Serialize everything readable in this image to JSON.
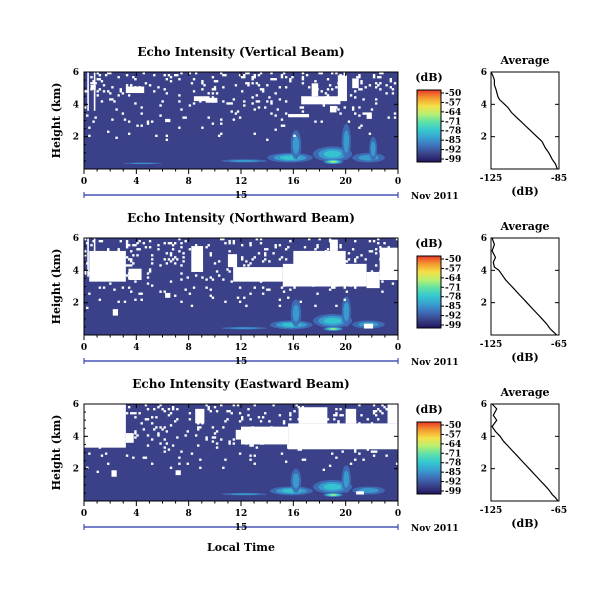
{
  "colors": {
    "background": "#3a4188",
    "colorbar": [
      "#20155f",
      "#3a4188",
      "#3e6fb8",
      "#39a0d0",
      "#35c8d0",
      "#5fe0a8",
      "#b8f070",
      "#f5e048",
      "#f59a30",
      "#e83828"
    ],
    "no_data": "#ffffff",
    "axis": "#000000",
    "date_axis": "#2233aa"
  },
  "chart_data": [
    {
      "type": "heatmap",
      "title": "Echo Intensity (Vertical Beam)",
      "ylabel": "Height (km)",
      "xticks": [
        "0",
        "4",
        "8",
        "12",
        "16",
        "20",
        "0"
      ],
      "xlim": [
        0,
        24
      ],
      "yticks": [
        "2",
        "4",
        "6"
      ],
      "ylim": [
        0,
        6
      ],
      "date_day": "15",
      "date_label": "Nov 2011",
      "colorbar": {
        "label": "(dB)",
        "ticks": [
          "-50",
          "-57",
          "-64",
          "-71",
          "-78",
          "-85",
          "-92",
          "-99"
        ],
        "range": [
          -99,
          -50
        ]
      },
      "gaps": [
        [
          3.2,
          4.6,
          4.7,
          5.1
        ],
        [
          8.4,
          9.6,
          4.2,
          4.5
        ],
        [
          9.3,
          10.2,
          4.1,
          4.4
        ],
        [
          15.6,
          17.2,
          3.2,
          3.4
        ],
        [
          16.6,
          19.6,
          4.0,
          4.5
        ],
        [
          17.4,
          17.9,
          4.5,
          5.3
        ],
        [
          19.4,
          20.1,
          4.2,
          5.8
        ],
        [
          18.8,
          19.3,
          3.5,
          3.9
        ],
        [
          20.5,
          21.0,
          5.0,
          5.6
        ],
        [
          6.2,
          6.6,
          2.9,
          3.1
        ],
        [
          0.5,
          0.9,
          4.9,
          5.2
        ],
        [
          21.6,
          22.0,
          3.1,
          3.5
        ]
      ],
      "hot": [
        [
          17.5,
          20.5,
          0.45,
          1.4,
          0.55
        ],
        [
          14.0,
          17.5,
          0.4,
          1.0,
          0.45
        ],
        [
          20.5,
          23.0,
          0.4,
          1.0,
          0.4
        ],
        [
          18.3,
          19.8,
          0.3,
          0.6,
          0.85
        ],
        [
          10.5,
          14.0,
          0.4,
          0.6,
          0.35
        ],
        [
          15.8,
          16.6,
          0.6,
          2.4,
          0.4
        ],
        [
          19.7,
          20.4,
          0.6,
          2.8,
          0.35
        ],
        [
          21.8,
          22.4,
          0.5,
          2.0,
          0.3
        ],
        [
          3.0,
          6.0,
          0.4,
          0.3,
          0.25
        ]
      ],
      "profile": {
        "title": "Average",
        "xlabel": "(dB)",
        "xticks": [
          "-125",
          "-85"
        ],
        "xlim": [
          -125,
          -85
        ],
        "yticks": [
          "2",
          "4",
          "6"
        ],
        "ylim": [
          0,
          6
        ],
        "x": [
          -125,
          -124,
          -123,
          -123,
          -122,
          -121,
          -120,
          -117,
          -115,
          -113,
          -110,
          -107,
          -104,
          -101,
          -98,
          -95,
          -93,
          -91,
          -89,
          -87,
          -86
        ],
        "y": [
          6.0,
          5.8,
          5.5,
          5.2,
          4.9,
          4.5,
          4.3,
          4.0,
          3.8,
          3.5,
          3.2,
          2.9,
          2.6,
          2.3,
          2.0,
          1.7,
          1.3,
          1.0,
          0.6,
          0.3,
          0.0
        ]
      }
    },
    {
      "type": "heatmap",
      "title": "Echo Intensity (Northward Beam)",
      "ylabel": "Height (km)",
      "xticks": [
        "0",
        "4",
        "8",
        "12",
        "16",
        "20",
        "0"
      ],
      "xlim": [
        0,
        24
      ],
      "yticks": [
        "2",
        "4",
        "6"
      ],
      "ylim": [
        0,
        6
      ],
      "date_day": "15",
      "date_label": "Nov 2011",
      "colorbar": {
        "label": "(dB)",
        "ticks": [
          "-50",
          "-57",
          "-64",
          "-71",
          "-78",
          "-85",
          "-92",
          "-99"
        ],
        "range": [
          -99,
          -50
        ]
      },
      "gaps": [
        [
          0.4,
          3.2,
          3.3,
          5.2
        ],
        [
          3.4,
          4.4,
          3.4,
          4.1
        ],
        [
          8.2,
          9.1,
          3.9,
          5.5
        ],
        [
          11.0,
          11.7,
          4.2,
          5.0
        ],
        [
          11.4,
          15.2,
          3.3,
          4.2
        ],
        [
          15.2,
          21.6,
          3.0,
          4.4
        ],
        [
          16.0,
          20.0,
          4.2,
          5.2
        ],
        [
          18.8,
          19.4,
          5.2,
          5.9
        ],
        [
          21.6,
          22.6,
          2.9,
          3.9
        ],
        [
          22.6,
          24.0,
          3.4,
          5.4
        ],
        [
          2.2,
          2.6,
          1.2,
          1.6
        ],
        [
          6.2,
          6.6,
          2.3,
          2.6
        ],
        [
          21.4,
          22.1,
          0.4,
          0.7
        ]
      ],
      "hot": [
        [
          17.5,
          20.5,
          0.45,
          1.3,
          0.55
        ],
        [
          14.2,
          17.5,
          0.35,
          0.9,
          0.45
        ],
        [
          20.5,
          23.0,
          0.4,
          0.9,
          0.4
        ],
        [
          18.3,
          19.8,
          0.25,
          0.5,
          0.8
        ],
        [
          10.5,
          14.0,
          0.35,
          0.5,
          0.3
        ],
        [
          15.8,
          16.6,
          0.5,
          2.2,
          0.35
        ],
        [
          19.7,
          20.4,
          0.5,
          2.4,
          0.3
        ],
        [
          3.0,
          6.0,
          0.3,
          0.3,
          0.2
        ]
      ],
      "profile": {
        "title": "Average",
        "xlabel": "(dB)",
        "xticks": [
          "-125",
          "-65"
        ],
        "xlim": [
          -125,
          -65
        ],
        "yticks": [
          "2",
          "4",
          "6"
        ],
        "ylim": [
          0,
          6
        ],
        "x": [
          -124,
          -122,
          -124,
          -121,
          -123,
          -122,
          -118,
          -115,
          -112,
          -108,
          -104,
          -100,
          -96,
          -92,
          -88,
          -84,
          -80,
          -76,
          -73,
          -70,
          -67
        ],
        "y": [
          6.0,
          5.6,
          5.2,
          4.8,
          4.5,
          4.2,
          4.0,
          3.7,
          3.4,
          3.1,
          2.8,
          2.5,
          2.2,
          1.9,
          1.6,
          1.3,
          1.0,
          0.7,
          0.4,
          0.2,
          0.0
        ]
      }
    },
    {
      "type": "heatmap",
      "title": "Echo Intensity (Eastward Beam)",
      "ylabel": "Height (km)",
      "xticks": [
        "0",
        "4",
        "8",
        "12",
        "16",
        "20",
        "0"
      ],
      "xlim": [
        0,
        24
      ],
      "yticks": [
        "2",
        "4",
        "6"
      ],
      "ylim": [
        0,
        6
      ],
      "date_day": "15",
      "date_label": "Nov 2011",
      "xlabel": "Local Time",
      "colorbar": {
        "label": "(dB)",
        "ticks": [
          "-50",
          "-57",
          "-64",
          "-71",
          "-78",
          "-85",
          "-92",
          "-99"
        ],
        "range": [
          -99,
          -50
        ]
      },
      "gaps": [
        [
          0.0,
          3.2,
          3.3,
          6.0
        ],
        [
          3.2,
          3.8,
          3.6,
          4.2
        ],
        [
          8.5,
          9.2,
          4.8,
          5.7
        ],
        [
          11.6,
          12.4,
          3.8,
          4.4
        ],
        [
          12.0,
          15.6,
          3.5,
          4.6
        ],
        [
          15.6,
          24.0,
          3.2,
          4.8
        ],
        [
          16.4,
          18.6,
          4.8,
          5.8
        ],
        [
          20.0,
          20.8,
          4.8,
          5.7
        ],
        [
          23.2,
          24.0,
          4.8,
          6.0
        ],
        [
          2.1,
          2.5,
          1.5,
          1.9
        ],
        [
          7.0,
          7.4,
          1.6,
          1.9
        ],
        [
          20.8,
          21.4,
          0.4,
          0.6
        ]
      ],
      "hot": [
        [
          17.5,
          20.5,
          0.45,
          1.3,
          0.55
        ],
        [
          14.2,
          17.5,
          0.35,
          0.9,
          0.45
        ],
        [
          20.5,
          23.0,
          0.4,
          0.9,
          0.4
        ],
        [
          18.3,
          19.8,
          0.25,
          0.5,
          0.85
        ],
        [
          10.5,
          14.0,
          0.35,
          0.5,
          0.3
        ],
        [
          15.8,
          16.6,
          0.5,
          2.0,
          0.35
        ],
        [
          19.7,
          20.4,
          0.5,
          2.2,
          0.3
        ],
        [
          3.0,
          6.0,
          0.3,
          0.3,
          0.2
        ]
      ],
      "profile": {
        "title": "Average",
        "xlabel": "(dB)",
        "xticks": [
          "-125",
          "-65"
        ],
        "xlim": [
          -125,
          -65
        ],
        "yticks": [
          "2",
          "4",
          "6"
        ],
        "ylim": [
          0,
          6
        ],
        "x": [
          -124,
          -120,
          -123,
          -120,
          -124,
          -121,
          -117,
          -114,
          -110,
          -106,
          -102,
          -98,
          -94,
          -90,
          -86,
          -82,
          -78,
          -74,
          -71,
          -68,
          -66
        ],
        "y": [
          6.0,
          5.7,
          5.3,
          5.0,
          4.6,
          4.3,
          4.0,
          3.7,
          3.4,
          3.1,
          2.8,
          2.5,
          2.2,
          1.9,
          1.6,
          1.3,
          1.0,
          0.7,
          0.4,
          0.2,
          0.0
        ]
      }
    }
  ]
}
